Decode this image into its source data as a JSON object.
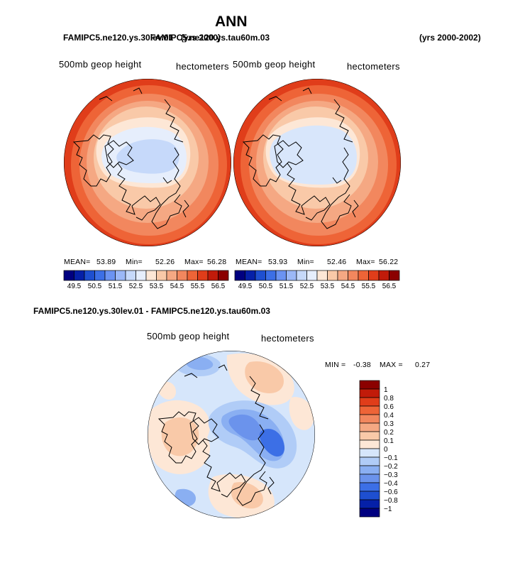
{
  "page": {
    "main_title": "ANN",
    "top_left_case": "FAMIPC5.ne120.ys.30lev.01",
    "top_left_case_overlap": "FAMIPC5.ne120.ys.tau60m.03",
    "top_left_years": "(yrs 2000)",
    "top_right_years": "(yrs 2000-2002)",
    "diff_title": "FAMIPC5.ne120.ys.30lev.01 - FAMIPC5.ne120.ys.tau60m.03"
  },
  "chart_data": [
    {
      "type": "polar_contour_map",
      "panel": "left",
      "variable_label": "500mb geop height",
      "units_label": "hectometers",
      "stats": {
        "mean_label": "MEAN=",
        "mean": "53.89",
        "min_label": "Min=",
        "min": "52.26",
        "max_label": "Max=",
        "max": "56.28"
      },
      "colorbar_ticks": [
        "49.5",
        "50.5",
        "51.5",
        "52.5",
        "53.5",
        "54.5",
        "55.5",
        "56.5"
      ],
      "levels": [
        49.5,
        50,
        50.5,
        51,
        51.5,
        52,
        52.5,
        53,
        53.5,
        54,
        54.5,
        55,
        55.5,
        56,
        56.5
      ],
      "colors": [
        "#000080",
        "#0520a8",
        "#1e4fd0",
        "#3c6fe6",
        "#6b93f2",
        "#9bb8f7",
        "#c6d9fa",
        "#e6eefc",
        "#fde7d6",
        "#f9c9a8",
        "#f5a883",
        "#f2875e",
        "#ee6437",
        "#e03d1a",
        "#c11b0a",
        "#8b0000"
      ]
    },
    {
      "type": "polar_contour_map",
      "panel": "right",
      "variable_label": "500mb geop height",
      "units_label": "hectometers",
      "stats": {
        "mean_label": "MEAN=",
        "mean": "53.93",
        "min_label": "Min=",
        "min": "52.46",
        "max_label": "Max=",
        "max": "56.22"
      },
      "colorbar_ticks": [
        "49.5",
        "50.5",
        "51.5",
        "52.5",
        "53.5",
        "54.5",
        "55.5",
        "56.5"
      ],
      "levels": [
        49.5,
        50,
        50.5,
        51,
        51.5,
        52,
        52.5,
        53,
        53.5,
        54,
        54.5,
        55,
        55.5,
        56,
        56.5
      ],
      "colors": [
        "#000080",
        "#0520a8",
        "#1e4fd0",
        "#3c6fe6",
        "#6b93f2",
        "#9bb8f7",
        "#c6d9fa",
        "#e6eefc",
        "#fde7d6",
        "#f9c9a8",
        "#f5a883",
        "#f2875e",
        "#ee6437",
        "#e03d1a",
        "#c11b0a",
        "#8b0000"
      ]
    },
    {
      "type": "polar_contour_map_difference",
      "panel": "bottom",
      "variable_label": "500mb geop height",
      "units_label": "hectometers",
      "stats": {
        "min_label": "MIN =",
        "min": "-0.38",
        "max_label": "MAX =",
        "max": "0.27"
      },
      "colorbar_ticks": [
        "1",
        "0.8",
        "0.6",
        "0.4",
        "0.3",
        "0.2",
        "0.1",
        "0",
        "−0.1",
        "−0.2",
        "−0.3",
        "−0.4",
        "−0.6",
        "−0.8",
        "−1"
      ],
      "levels": [
        1,
        0.8,
        0.6,
        0.4,
        0.3,
        0.2,
        0.1,
        0,
        -0.1,
        -0.2,
        -0.3,
        -0.4,
        -0.6,
        -0.8,
        -1
      ],
      "colors": [
        "#8b0000",
        "#c11b0a",
        "#e03d1a",
        "#ee6437",
        "#f2875e",
        "#f5a883",
        "#f9c9a8",
        "#fde7d6",
        "#d6e6fb",
        "#b0ccf7",
        "#8aaff2",
        "#6b93ec",
        "#3c6fe6",
        "#1e4fd0",
        "#0520a8",
        "#000080"
      ]
    }
  ]
}
